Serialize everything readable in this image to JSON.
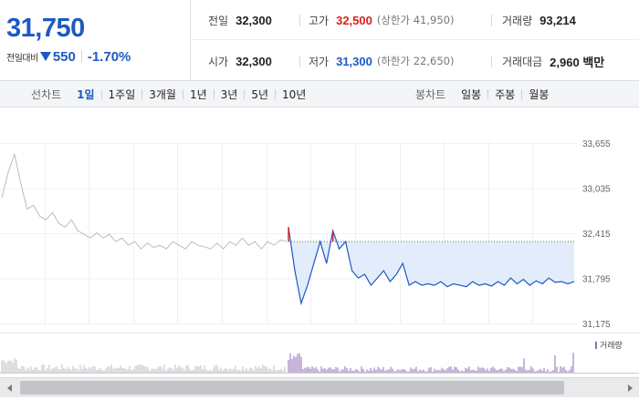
{
  "price": {
    "current": "31,750",
    "change_label": "전일대비",
    "change_amount": "550",
    "change_percent": "-1.70%",
    "direction": "down"
  },
  "stats": {
    "prev_close": {
      "label": "전일",
      "value": "32,300"
    },
    "high": {
      "label": "고가",
      "value": "32,500",
      "limit_label": "(상한가 41,950)"
    },
    "volume": {
      "label": "거래량",
      "value": "93,214"
    },
    "open": {
      "label": "시가",
      "value": "32,300"
    },
    "low": {
      "label": "저가",
      "value": "31,300",
      "limit_label": "(하한가 22,650)"
    },
    "trade_value": {
      "label": "거래대금",
      "value": "2,960 백만"
    }
  },
  "tabs": {
    "line_chart": {
      "title": "선차트",
      "items": [
        {
          "label": "1일",
          "active": true
        },
        {
          "label": "1주일",
          "active": false
        },
        {
          "label": "3개월",
          "active": false
        },
        {
          "label": "1년",
          "active": false
        },
        {
          "label": "3년",
          "active": false
        },
        {
          "label": "5년",
          "active": false
        },
        {
          "label": "10년",
          "active": false
        }
      ]
    },
    "candle_chart": {
      "title": "봉차트",
      "items": [
        {
          "label": "일봉",
          "active": false
        },
        {
          "label": "주봉",
          "active": false
        },
        {
          "label": "월봉",
          "active": false
        }
      ]
    }
  },
  "colors": {
    "up": "#d8211b",
    "down": "#1b5ac2",
    "prev_day_line": "#b9bdc4",
    "fill": "#e3ecfa",
    "volume_prev": "#b8bcc2",
    "volume_today": "#8d6fb3"
  },
  "chart_data": {
    "type": "line",
    "yticks": [
      "33,655",
      "33,035",
      "32,415",
      "31,795",
      "31,175"
    ],
    "ylim": [
      31175,
      33655
    ],
    "reference_line": 32300,
    "legend": "거래량",
    "grid": true,
    "series": [
      {
        "values": [
          32900,
          33250,
          33500,
          33100,
          32750,
          32800,
          32650,
          32600,
          32700,
          32550,
          32500,
          32600,
          32450,
          32400,
          32350,
          32420,
          32350,
          32400,
          32300,
          32350,
          32250,
          32300,
          32200,
          32280,
          32220,
          32250,
          32200,
          32300,
          32250,
          32200,
          32300,
          32250,
          32230,
          32200,
          32280,
          32200,
          32300,
          32250,
          32350,
          32250,
          32300,
          32200,
          32300,
          32250,
          32320,
          32300
        ]
      },
      {
        "values": [
          32500,
          31900,
          31450,
          31700,
          32000,
          32300,
          32000,
          32450,
          32200,
          32300,
          31900,
          31800,
          31850,
          31700,
          31800,
          31900,
          31750,
          31850,
          32000,
          31700,
          31750,
          31700,
          31720,
          31700,
          31750,
          31680,
          31720,
          31700,
          31680,
          31750,
          31700,
          31720,
          31690,
          31750,
          31700,
          31800,
          31720,
          31780,
          31700,
          31760,
          31720,
          31800,
          31740,
          31750,
          31720,
          31750
        ]
      }
    ]
  }
}
